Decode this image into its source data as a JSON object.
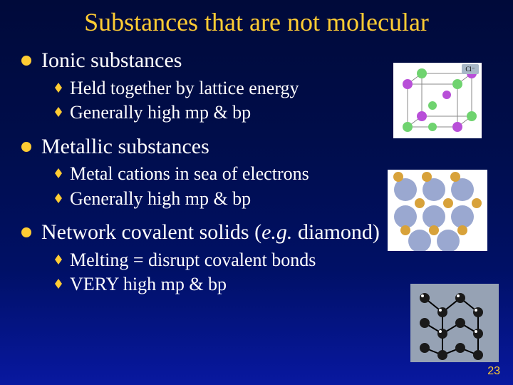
{
  "title": "Substances that are not molecular",
  "sections": [
    {
      "heading": "Ionic substances",
      "items": [
        "Held together by lattice energy",
        "Generally high mp & bp"
      ]
    },
    {
      "heading": "Metallic substances",
      "items": [
        "Metal cations in sea of electrons",
        "Generally high mp & bp"
      ]
    },
    {
      "heading_pre": "Network covalent solids (",
      "heading_em": "e.g.",
      "heading_post": " diamond)",
      "items": [
        "Melting = disrupt covalent bonds",
        "VERY high mp & bp"
      ]
    }
  ],
  "page_number": "23",
  "style": {
    "title_color": "#ffcc33",
    "body_color": "#ffffff",
    "bullet_main_color": "#ffcc33",
    "bullet_sub_color": "#ffcc33",
    "bg_gradient": [
      "#000a3a",
      "#000d4a",
      "#001066",
      "#0818a0"
    ],
    "title_fontsize": 36,
    "section_fontsize": 30,
    "sub_fontsize": 26,
    "page_num_color": "#ffcc33"
  },
  "figures": {
    "ionic": {
      "type": "lattice-cube",
      "colors": {
        "ion_a": "#6fd36f",
        "ion_b": "#b84fd8",
        "edge": "#666666",
        "label_bg": "#a8b8c8"
      },
      "labels": [
        "Cl⁻"
      ]
    },
    "metallic": {
      "type": "electron-sea",
      "cation_color": "#d8a23a",
      "electron_color": "#7a89b8",
      "rows": 3,
      "cols": 4
    },
    "diamond": {
      "type": "network-3d",
      "atom_color": "#222222",
      "bond_color": "#000000",
      "bg": "#96a2b4"
    }
  }
}
